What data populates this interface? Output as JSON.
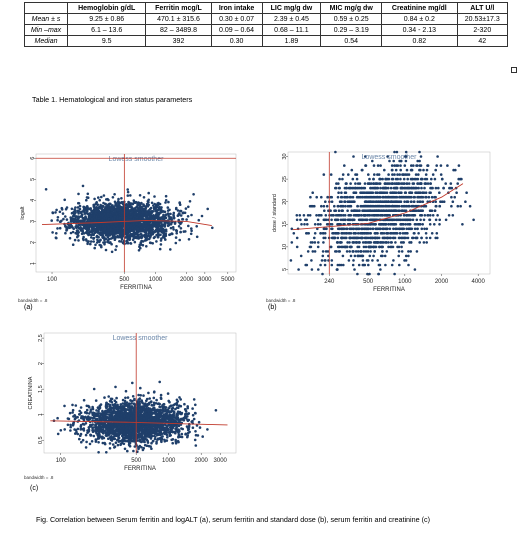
{
  "table": {
    "headers": [
      "",
      "Hemoglobin  g/dL",
      "Ferritin mcg/L",
      "Iron intake",
      "LIC mg/g dw",
      "MIC mg/g dw",
      "Creatinine mg/dl",
      "ALT U/l"
    ],
    "rows": [
      {
        "label": "Mean ± s",
        "cells": [
          "9.25 ± 0.86",
          "470.1 ± 315.6",
          "0.30 ± 0.07",
          "2.39 ± 0.45",
          "0.59 ± 0.25",
          "0.84 ± 0.2",
          "20.53±17.3"
        ]
      },
      {
        "label": "Min –max",
        "cells": [
          "6.1 – 13.6",
          "82 – 3489.8",
          "0.09 – 0.64",
          "0.68 – 11.1",
          "0.29 – 3.19",
          "0.34 - 2.13",
          "2-320"
        ]
      },
      {
        "label": "Median",
        "cells": [
          "9.5",
          "392",
          "0.30",
          "1.89",
          "0.54",
          "0.82",
          "42"
        ]
      }
    ]
  },
  "table_caption": "Table 1. Hematological and iron status parameters",
  "figure_caption": "Fig. Correlation between Serum ferritin and logALT (a), serum ferritin and standard dose (b), serum ferritin and creatinine (c)",
  "chart_data": [
    {
      "type": "scatter",
      "panel_label": "(a)",
      "title": "Lowess smoother",
      "xlabel": "FERRITINA",
      "ylabel": "logalt",
      "note": "bandwidth = .8",
      "x_ticks": [
        "100",
        "500",
        "1000",
        "2000",
        "3000",
        "5000"
      ],
      "y_ticks": [
        "1",
        "2",
        "3",
        "4",
        "5",
        "6"
      ],
      "x_scale": "log",
      "xlim": [
        70,
        6000
      ],
      "ylim": [
        0.6,
        6.2
      ],
      "reference_lines": {
        "x": 500,
        "y": 6
      },
      "smoother": [
        {
          "x": 80,
          "y": 2.85
        },
        {
          "x": 300,
          "y": 2.95
        },
        {
          "x": 800,
          "y": 3.05
        },
        {
          "x": 2000,
          "y": 3.0
        },
        {
          "x": 3500,
          "y": 2.8
        }
      ],
      "colors": {
        "points": "#1f3f6a",
        "lines": "#c0392b",
        "title": "#6a86a8"
      }
    },
    {
      "type": "scatter",
      "panel_label": "(b)",
      "title": "Lowess smoother",
      "xlabel": "FERRITINA",
      "ylabel": "dose / standard",
      "note": "bandwidth = .8",
      "x_ticks": [
        "240",
        "500",
        "1000",
        "2000",
        "4000"
      ],
      "y_ticks": [
        "5",
        "10",
        "15",
        "20",
        "25",
        "30"
      ],
      "x_scale": "log",
      "xlim": [
        110,
        5000
      ],
      "ylim": [
        4,
        31
      ],
      "reference_lines": {
        "x": 240
      },
      "smoother": [
        {
          "x": 120,
          "y": 13.8
        },
        {
          "x": 500,
          "y": 15.2
        },
        {
          "x": 1000,
          "y": 17.5
        },
        {
          "x": 2000,
          "y": 21.0
        },
        {
          "x": 3000,
          "y": 24.0
        }
      ],
      "colors": {
        "points": "#1f3f6a",
        "lines": "#c0392b",
        "title": "#6a86a8"
      }
    },
    {
      "type": "scatter",
      "panel_label": "(c)",
      "title": "Lowess smoother",
      "xlabel": "FERRITINA",
      "ylabel": "CREATININA",
      "note": "bandwidth = .8",
      "x_ticks": [
        "100",
        "500",
        "1000",
        "2000",
        "3000"
      ],
      "y_ticks": [
        "0.5",
        "1",
        "1.5",
        "2",
        "2.5"
      ],
      "x_scale": "log",
      "xlim": [
        70,
        4200
      ],
      "ylim": [
        0.25,
        2.6
      ],
      "reference_lines": {
        "x": 500
      },
      "smoother": [
        {
          "x": 80,
          "y": 0.88
        },
        {
          "x": 500,
          "y": 0.85
        },
        {
          "x": 1500,
          "y": 0.82
        },
        {
          "x": 3500,
          "y": 0.8
        }
      ],
      "colors": {
        "points": "#1f3f6a",
        "lines": "#c0392b",
        "title": "#6a86a8"
      }
    }
  ]
}
